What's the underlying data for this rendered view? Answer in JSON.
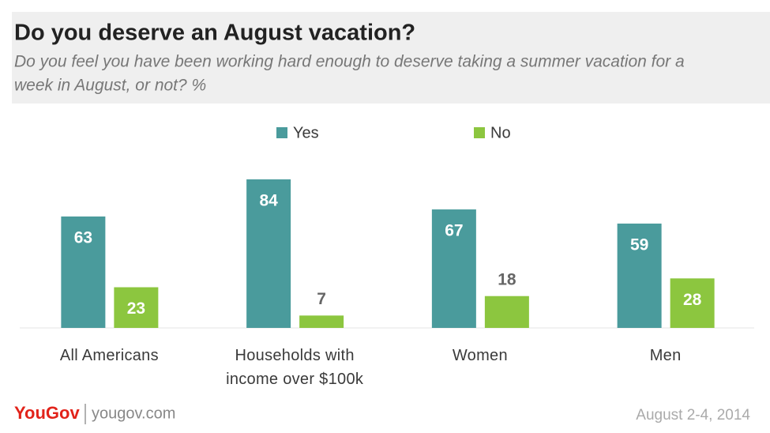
{
  "chart_data": {
    "type": "bar",
    "title": "Do you deserve an August vacation?",
    "subtitle": [
      "Do you feel you have been working hard enough to deserve taking a summer vacation for a",
      "week in August, or not? %"
    ],
    "categories": [
      "All Americans",
      "Households with income over $100k",
      "Women",
      "Men"
    ],
    "series": [
      {
        "name": "Yes",
        "color": "#4a9b9c",
        "values": [
          63,
          84,
          67,
          59
        ]
      },
      {
        "name": "No",
        "color": "#8cc63f",
        "values": [
          23,
          7,
          18,
          28
        ]
      }
    ],
    "legend": "top",
    "brand": "YouGov",
    "website": "yougov.com",
    "date": "August 2-4, 2014"
  }
}
